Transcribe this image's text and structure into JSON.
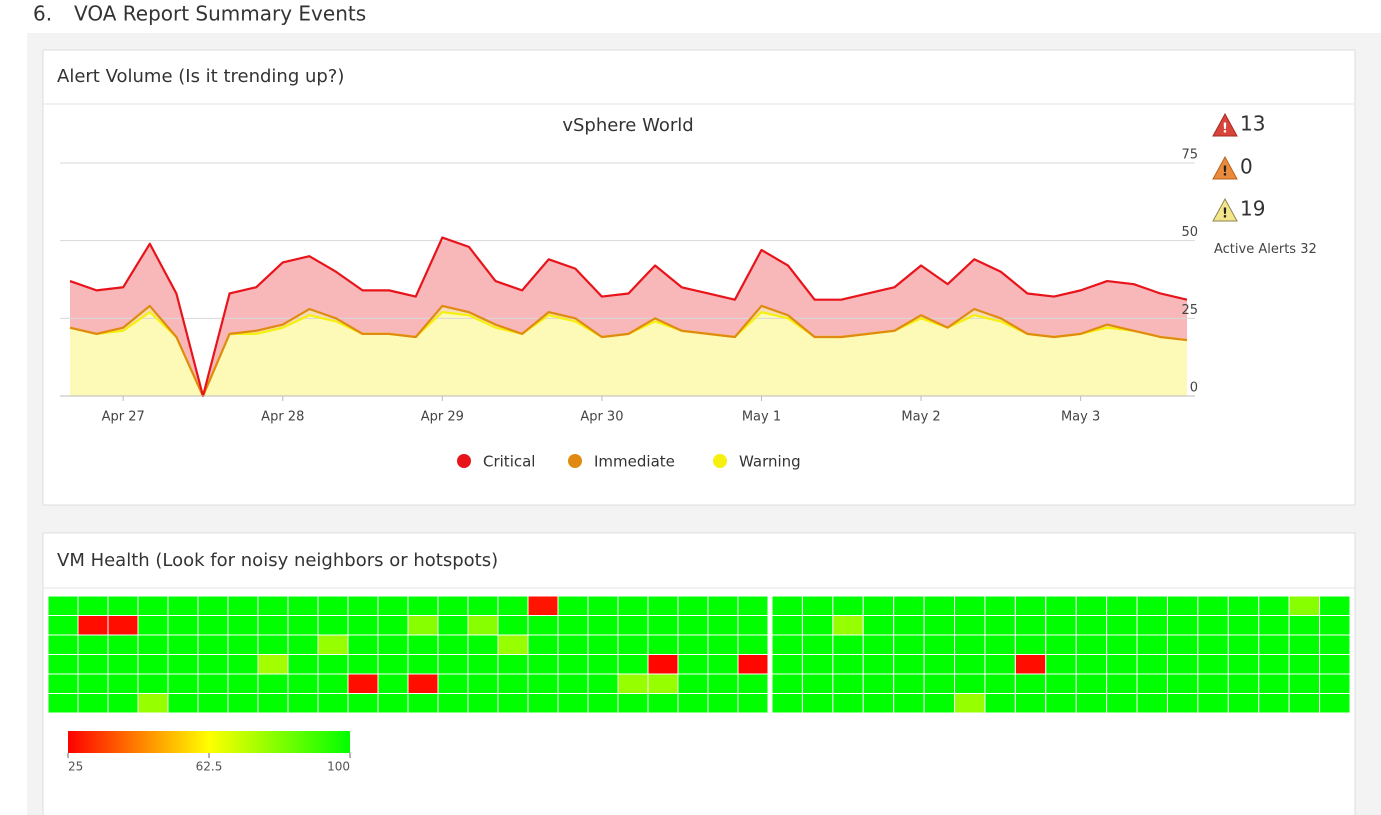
{
  "heading": {
    "number": "6.",
    "title": "VOA Report Summary Events"
  },
  "panels": [
    {
      "title": "Alert Volume (Is it trending up?)"
    },
    {
      "title": "VM Health (Look for noisy neighbors or hotspots)"
    }
  ],
  "alert_summary": {
    "critical": 13,
    "immediate": 0,
    "warning": 19,
    "active_label": "Active Alerts",
    "active_count": 32
  },
  "chart_data": [
    {
      "type": "stacked_area",
      "title": "vSphere World",
      "categories": [
        null,
        null,
        "Apr 27",
        null,
        null,
        null,
        null,
        null,
        "Apr 28",
        null,
        null,
        null,
        null,
        null,
        "Apr 29",
        null,
        null,
        null,
        null,
        null,
        "Apr 30",
        null,
        null,
        null,
        null,
        null,
        "May 1",
        null,
        null,
        null,
        null,
        null,
        "May 2",
        null,
        null,
        null,
        null,
        null,
        "May 3",
        null,
        null,
        null,
        null
      ],
      "series": [
        {
          "name": "Critical",
          "color": "#e8141b",
          "values": [
            15,
            14,
            13,
            20,
            14,
            0,
            13,
            14,
            20,
            17,
            15,
            14,
            14,
            13,
            22,
            21,
            14,
            14,
            17,
            16,
            13,
            13,
            17,
            14,
            13,
            12,
            18,
            16,
            12,
            12,
            13,
            14,
            16,
            14,
            16,
            15,
            13,
            13,
            14,
            14,
            15,
            14,
            13
          ]
        },
        {
          "name": "Immediate",
          "color": "#e08a12",
          "values": [
            0,
            0,
            1,
            2,
            0,
            0,
            0,
            1,
            1,
            2,
            1,
            0,
            0,
            0,
            2,
            1,
            1,
            0,
            1,
            1,
            0,
            0,
            1,
            0,
            0,
            0,
            2,
            1,
            0,
            0,
            0,
            0,
            1,
            0,
            2,
            1,
            0,
            0,
            0,
            1,
            0,
            0,
            0
          ]
        },
        {
          "name": "Warning",
          "color": "#f5f00e",
          "values": [
            22,
            20,
            21,
            27,
            19,
            0,
            20,
            20,
            22,
            26,
            24,
            20,
            20,
            19,
            27,
            26,
            22,
            20,
            26,
            24,
            19,
            20,
            24,
            21,
            20,
            19,
            27,
            25,
            19,
            19,
            20,
            21,
            25,
            22,
            26,
            24,
            20,
            19,
            20,
            22,
            21,
            19,
            18
          ]
        }
      ],
      "ylim": [
        0,
        75
      ],
      "yticks": [
        0,
        25,
        50,
        75
      ],
      "grid": true
    },
    {
      "type": "heatmap",
      "clim": [
        25,
        100
      ],
      "cticks": [
        25,
        62.5,
        100
      ],
      "colors": [
        "#ff0000",
        "#ffff00",
        "#00ff00"
      ],
      "groups": [
        {
          "rows": [
            [
              100,
              100,
              100,
              100,
              100,
              100,
              100,
              100,
              100,
              100,
              100,
              100,
              100,
              100,
              100,
              100,
              28,
              100,
              100,
              100,
              100,
              100,
              100,
              100
            ],
            [
              100,
              27,
              27,
              100,
              100,
              100,
              100,
              100,
              100,
              100,
              100,
              100,
              80,
              100,
              80,
              100,
              100,
              100,
              100,
              100,
              100,
              100,
              100,
              100
            ],
            [
              100,
              100,
              100,
              100,
              100,
              100,
              100,
              100,
              100,
              78,
              100,
              100,
              100,
              100,
              100,
              78,
              100,
              100,
              100,
              100,
              100,
              100,
              100,
              100
            ],
            [
              100,
              100,
              100,
              100,
              100,
              100,
              100,
              76,
              100,
              100,
              100,
              100,
              100,
              100,
              100,
              100,
              100,
              100,
              100,
              100,
              26,
              100,
              100,
              26
            ],
            [
              100,
              100,
              100,
              100,
              100,
              100,
              100,
              100,
              100,
              100,
              27,
              100,
              27,
              100,
              100,
              100,
              100,
              100,
              100,
              78,
              78,
              100,
              100,
              100
            ],
            [
              100,
              100,
              100,
              78,
              100,
              100,
              100,
              100,
              100,
              100,
              100,
              100,
              100,
              100,
              100,
              100,
              100,
              100,
              100,
              100,
              100,
              100,
              100,
              100
            ]
          ]
        },
        {
          "rows": [
            [
              100,
              100,
              100,
              100,
              100,
              100,
              100,
              100,
              100,
              100,
              100,
              100,
              100,
              100,
              100,
              100,
              100,
              80,
              100
            ],
            [
              100,
              100,
              78,
              100,
              100,
              100,
              100,
              100,
              100,
              100,
              100,
              100,
              100,
              100,
              100,
              100,
              100,
              100,
              100
            ],
            [
              100,
              100,
              100,
              100,
              100,
              100,
              100,
              100,
              100,
              100,
              100,
              100,
              100,
              100,
              100,
              100,
              100,
              100,
              100
            ],
            [
              100,
              100,
              100,
              100,
              100,
              100,
              100,
              100,
              27,
              100,
              100,
              100,
              100,
              100,
              100,
              100,
              100,
              100,
              100
            ],
            [
              100,
              100,
              100,
              100,
              100,
              100,
              100,
              100,
              100,
              100,
              100,
              100,
              100,
              100,
              100,
              100,
              100,
              100,
              100
            ],
            [
              100,
              100,
              100,
              100,
              100,
              100,
              78,
              100,
              100,
              100,
              100,
              100,
              100,
              100,
              100,
              100,
              100,
              100,
              100
            ]
          ]
        }
      ]
    }
  ]
}
